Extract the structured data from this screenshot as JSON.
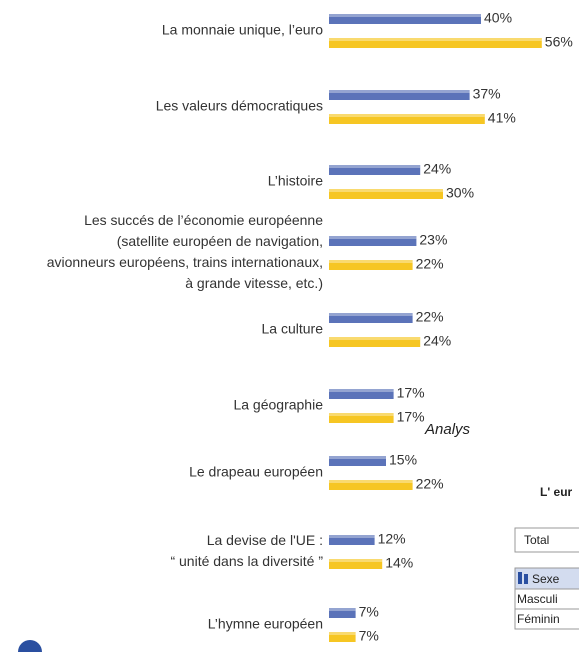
{
  "chart_data": {
    "type": "hbar",
    "categories": [
      [
        "La monnaie unique, l’euro"
      ],
      [
        "Les valeurs démocratiques"
      ],
      [
        "L’histoire"
      ],
      [
        "Les succés de l’économie européenne",
        "(satellite européen de navigation,",
        "avionneurs européens, trains internationaux,",
        "à grande vitesse, etc.)"
      ],
      [
        "La culture"
      ],
      [
        "La géographie"
      ],
      [
        "Le drapeau européen"
      ],
      [
        "La devise de l'UE :",
        "“ unité dans la diversité ”"
      ],
      [
        "L’hymne européen"
      ]
    ],
    "series": [
      {
        "color": "#5b73b9",
        "values": [
          40,
          37,
          24,
          23,
          22,
          17,
          15,
          12,
          7
        ],
        "value_labels": [
          "40%",
          "37%",
          "24%",
          "23%",
          "22%",
          "17%",
          "15%",
          "12%",
          "7%"
        ]
      },
      {
        "color": "#f6c623",
        "values": [
          56,
          41,
          30,
          22,
          24,
          17,
          22,
          14,
          7
        ],
        "value_labels": [
          "56%",
          "41%",
          "30%",
          "22%",
          "24%",
          "17%",
          "22%",
          "14%",
          "7%"
        ]
      }
    ],
    "xlim": [
      0,
      100
    ]
  },
  "side_panel": {
    "heading": "Analys",
    "subheading": "L' eur",
    "rows": [
      "Total",
      "Sexe",
      "Masculi",
      "Féminin"
    ]
  }
}
